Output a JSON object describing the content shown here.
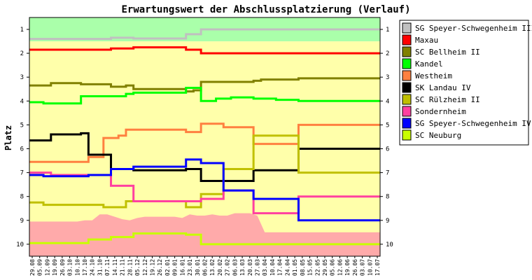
{
  "chart_data": {
    "type": "line",
    "title": "Erwartungswert der Abschlussplatzierung (Verlauf)",
    "ylabel": "Platz",
    "xlabel": "",
    "ylim": [
      1,
      10
    ],
    "y_ticks": [
      1,
      2,
      3,
      4,
      5,
      6,
      7,
      8,
      9,
      10
    ],
    "y_inverted": true,
    "legend_position": "right",
    "x": [
      "29.08",
      "05.09",
      "12.09",
      "19.09",
      "26.09",
      "03.10",
      "10.10",
      "17.10",
      "24.10",
      "31.10",
      "07.11",
      "14.11",
      "21.11",
      "28.11",
      "05.12",
      "12.12",
      "19.12",
      "26.12",
      "02.01",
      "09.01",
      "16.01",
      "23.01",
      "30.01",
      "06.02",
      "13.02",
      "20.02",
      "27.02",
      "06.03",
      "13.03",
      "20.03",
      "27.03",
      "03.04",
      "10.04",
      "17.04",
      "24.04",
      "01.05",
      "08.05",
      "15.05",
      "22.05",
      "29.05",
      "05.06",
      "12.06",
      "19.06",
      "26.06",
      "03.07",
      "10.07",
      "17.07"
    ],
    "bands": [
      {
        "from": 0.5,
        "to": 1.5,
        "color": "#aaffaa"
      },
      {
        "from": 1.5,
        "to": 10.5,
        "color": "#ffffaa"
      }
    ],
    "band_colors": {
      "top": "#aaffaa",
      "middle": "#ffffaa",
      "bottom": "#ffaaaa"
    },
    "relegation_boundary": [
      9.05,
      9.05,
      9.05,
      9.05,
      9.05,
      9.05,
      9.05,
      9.0,
      9.0,
      8.75,
      8.75,
      8.85,
      8.95,
      9.0,
      8.9,
      8.85,
      8.85,
      8.85,
      8.85,
      8.85,
      8.9,
      8.75,
      8.8,
      8.8,
      8.75,
      8.8,
      8.8,
      8.7,
      8.7,
      8.7,
      8.8,
      9.5,
      9.5,
      9.5,
      9.5,
      9.5,
      9.5,
      9.5,
      9.5,
      9.5,
      9.5,
      9.5,
      9.5,
      9.5,
      9.5,
      9.5,
      9.5
    ],
    "series": [
      {
        "name": "SG Speyer-Schwegenheim III",
        "color": "#c0c0c0",
        "values": [
          1.4,
          1.4,
          1.4,
          1.4,
          1.4,
          1.4,
          1.4,
          1.4,
          1.4,
          1.4,
          1.4,
          1.35,
          1.35,
          1.35,
          1.38,
          1.38,
          1.38,
          1.38,
          1.38,
          1.38,
          1.38,
          1.2,
          1.2,
          1.0,
          1.0,
          1.0,
          1.0,
          1.0,
          1.0,
          1.0,
          1.0,
          1.0,
          1.0,
          1.0,
          1.0,
          1.0,
          1.0,
          1.0,
          1.0,
          1.0,
          1.0,
          1.0,
          1.0,
          1.0,
          1.0,
          1.0,
          1.0
        ]
      },
      {
        "name": "Maxau",
        "color": "#ff0000",
        "values": [
          1.85,
          1.85,
          1.85,
          1.85,
          1.85,
          1.85,
          1.85,
          1.85,
          1.85,
          1.85,
          1.85,
          1.8,
          1.8,
          1.8,
          1.75,
          1.75,
          1.75,
          1.75,
          1.75,
          1.75,
          1.75,
          1.85,
          1.85,
          2.0,
          2.0,
          2.0,
          2.0,
          2.0,
          2.0,
          2.0,
          2.0,
          2.0,
          2.0,
          2.0,
          2.0,
          2.0,
          2.0,
          2.0,
          2.0,
          2.0,
          2.0,
          2.0,
          2.0,
          2.0,
          2.0,
          2.0,
          2.0
        ]
      },
      {
        "name": "SC Bellheim II",
        "color": "#808000",
        "values": [
          3.35,
          3.35,
          3.35,
          3.25,
          3.25,
          3.25,
          3.25,
          3.3,
          3.3,
          3.3,
          3.3,
          3.4,
          3.4,
          3.35,
          3.5,
          3.5,
          3.5,
          3.5,
          3.5,
          3.5,
          3.5,
          3.6,
          3.55,
          3.2,
          3.2,
          3.2,
          3.2,
          3.2,
          3.2,
          3.2,
          3.15,
          3.1,
          3.1,
          3.1,
          3.1,
          3.1,
          3.05,
          3.05,
          3.05,
          3.05,
          3.05,
          3.05,
          3.05,
          3.05,
          3.05,
          3.05,
          3.05
        ]
      },
      {
        "name": "Kandel",
        "color": "#00ff00",
        "values": [
          4.05,
          4.05,
          4.1,
          4.1,
          4.1,
          4.1,
          4.1,
          3.8,
          3.8,
          3.8,
          3.8,
          3.8,
          3.8,
          3.7,
          3.65,
          3.65,
          3.65,
          3.65,
          3.65,
          3.65,
          3.65,
          3.45,
          3.45,
          4.0,
          4.0,
          3.9,
          3.9,
          3.85,
          3.85,
          3.85,
          3.9,
          3.9,
          3.9,
          3.95,
          3.95,
          3.95,
          4.0,
          4.0,
          4.0,
          4.0,
          4.0,
          4.0,
          4.0,
          4.0,
          4.0,
          4.0,
          4.0
        ]
      },
      {
        "name": "Westheim",
        "color": "#ff8040",
        "values": [
          6.55,
          6.55,
          6.55,
          6.55,
          6.55,
          6.55,
          6.55,
          6.55,
          6.35,
          6.35,
          5.55,
          5.55,
          5.45,
          5.2,
          5.2,
          5.2,
          5.2,
          5.2,
          5.2,
          5.2,
          5.2,
          5.3,
          5.3,
          4.95,
          4.95,
          4.95,
          5.1,
          5.1,
          5.1,
          5.1,
          5.8,
          5.8,
          5.8,
          5.8,
          5.8,
          5.8,
          5.0,
          5.0,
          5.0,
          5.0,
          5.0,
          5.0,
          5.0,
          5.0,
          5.0,
          5.0,
          5.0
        ]
      },
      {
        "name": "SK Landau IV",
        "color": "#000000",
        "values": [
          5.65,
          5.65,
          5.65,
          5.4,
          5.4,
          5.4,
          5.4,
          5.35,
          6.25,
          6.25,
          6.25,
          6.85,
          6.85,
          6.85,
          6.9,
          6.9,
          6.9,
          6.9,
          6.9,
          6.9,
          6.9,
          6.85,
          6.85,
          7.35,
          7.35,
          7.35,
          7.35,
          7.35,
          7.35,
          7.35,
          6.9,
          6.9,
          6.9,
          6.9,
          6.9,
          6.9,
          6.0,
          6.0,
          6.0,
          6.0,
          6.0,
          6.0,
          6.0,
          6.0,
          6.0,
          6.0,
          6.0
        ]
      },
      {
        "name": "SC Rülzheim II",
        "color": "#c0c000",
        "values": [
          8.25,
          8.25,
          8.35,
          8.35,
          8.35,
          8.35,
          8.35,
          8.35,
          8.35,
          8.35,
          8.45,
          8.45,
          8.45,
          8.2,
          8.2,
          8.2,
          8.2,
          8.2,
          8.2,
          8.2,
          8.2,
          8.45,
          8.45,
          7.9,
          7.9,
          7.9,
          6.85,
          6.85,
          6.85,
          6.85,
          5.45,
          5.45,
          5.45,
          5.45,
          5.45,
          5.45,
          7.0,
          7.0,
          7.0,
          7.0,
          7.0,
          7.0,
          7.0,
          7.0,
          7.0,
          7.0,
          7.0
        ]
      },
      {
        "name": "Sondernheim",
        "color": "#ff40a0",
        "values": [
          7.0,
          7.0,
          7.0,
          7.1,
          7.1,
          7.1,
          7.1,
          7.1,
          7.1,
          7.1,
          7.1,
          7.55,
          7.55,
          7.55,
          8.2,
          8.2,
          8.2,
          8.2,
          8.2,
          8.2,
          8.2,
          8.2,
          8.2,
          8.1,
          8.1,
          8.1,
          7.75,
          7.75,
          7.75,
          7.75,
          8.7,
          8.7,
          8.7,
          8.7,
          8.7,
          8.7,
          8.0,
          8.0,
          8.0,
          8.0,
          8.0,
          8.0,
          8.0,
          8.0,
          8.0,
          8.0,
          8.0
        ]
      },
      {
        "name": "SG Speyer-Schwegenheim   IV",
        "color": "#0000ff",
        "values": [
          7.1,
          7.1,
          7.15,
          7.15,
          7.15,
          7.15,
          7.15,
          7.15,
          7.1,
          7.1,
          7.1,
          6.85,
          6.85,
          6.85,
          6.75,
          6.75,
          6.75,
          6.75,
          6.75,
          6.75,
          6.75,
          6.45,
          6.45,
          6.6,
          6.6,
          6.6,
          7.75,
          7.75,
          7.75,
          7.75,
          8.1,
          8.1,
          8.1,
          8.1,
          8.1,
          8.1,
          9.0,
          9.0,
          9.0,
          9.0,
          9.0,
          9.0,
          9.0,
          9.0,
          9.0,
          9.0,
          9.0
        ]
      },
      {
        "name": "SC Neuburg",
        "color": "#c8ff00",
        "values": [
          9.95,
          9.95,
          9.95,
          9.95,
          9.95,
          9.95,
          9.95,
          9.95,
          9.8,
          9.8,
          9.8,
          9.7,
          9.7,
          9.7,
          9.55,
          9.55,
          9.55,
          9.55,
          9.55,
          9.55,
          9.55,
          9.6,
          9.6,
          10.0,
          10.0,
          10.0,
          10.0,
          10.0,
          10.0,
          10.0,
          10.0,
          10.0,
          10.0,
          10.0,
          10.0,
          10.0,
          10.0,
          10.0,
          10.0,
          10.0,
          10.0,
          10.0,
          10.0,
          10.0,
          10.0,
          10.0,
          10.0
        ]
      }
    ]
  }
}
